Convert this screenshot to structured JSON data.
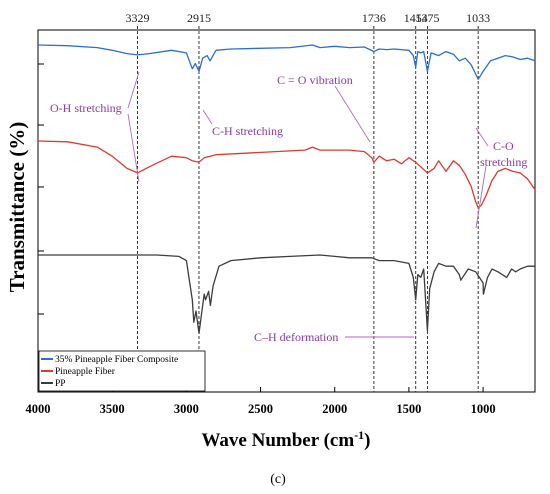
{
  "chart_data": {
    "type": "line",
    "xlabel": "Wave Number (cm",
    "xlabel_sup": "-1",
    "xlabel_close": ")",
    "ylabel": "Transmittance (%)",
    "caption": "(c)",
    "xlim": [
      4000,
      650
    ],
    "x_reversed": true,
    "x_ticks": [
      4000,
      3500,
      3000,
      2500,
      2000,
      1500,
      1000
    ],
    "y_ticks_labeled": false,
    "legend_position": "bottom-left",
    "peak_markers": [
      {
        "label": "3329",
        "x": 3329
      },
      {
        "label": "2915",
        "x": 2915
      },
      {
        "label": "1736",
        "x": 1736
      },
      {
        "label": "1454",
        "x": 1454
      },
      {
        "label": "1375",
        "x": 1375
      },
      {
        "label": "1033",
        "x": 1033
      }
    ],
    "annotations": [
      {
        "text": "O-H stretching"
      },
      {
        "text": "C-H stretching"
      },
      {
        "text": "C = O vibration"
      },
      {
        "text": "C-O"
      },
      {
        "text": "stretching"
      },
      {
        "text": "C–H deformation"
      }
    ],
    "series": [
      {
        "name": "35% Pineapple Fiber Composite",
        "color": "#2b6fd6",
        "x": [
          4000,
          3800,
          3600,
          3500,
          3400,
          3329,
          3250,
          3100,
          3000,
          2960,
          2940,
          2915,
          2890,
          2860,
          2840,
          2800,
          2700,
          2500,
          2300,
          2150,
          2100,
          2000,
          1900,
          1800,
          1736,
          1700,
          1650,
          1600,
          1500,
          1470,
          1454,
          1440,
          1420,
          1400,
          1375,
          1350,
          1300,
          1250,
          1200,
          1160,
          1120,
          1080,
          1050,
          1033,
          1000,
          950,
          900,
          850,
          800,
          750,
          700,
          650
        ],
        "values": [
          100,
          99.5,
          98,
          96,
          93.5,
          92.5,
          93.5,
          96,
          94,
          82,
          86,
          80,
          90,
          92,
          88,
          96,
          97,
          97.5,
          98,
          100,
          98,
          99,
          98,
          98.5,
          95,
          97,
          96.5,
          97,
          96,
          92,
          83,
          95,
          94,
          95,
          80,
          94,
          92,
          95,
          93,
          88,
          90,
          85,
          78,
          74,
          80,
          88,
          90,
          92,
          91,
          89,
          90,
          88
        ]
      },
      {
        "name": "Pineapple Fiber",
        "color": "#e03a2f",
        "x": [
          4000,
          3800,
          3600,
          3500,
          3400,
          3329,
          3250,
          3100,
          3000,
          2960,
          2915,
          2880,
          2800,
          2600,
          2400,
          2200,
          2150,
          2100,
          2000,
          1900,
          1800,
          1750,
          1736,
          1700,
          1650,
          1600,
          1550,
          1500,
          1454,
          1420,
          1375,
          1330,
          1300,
          1250,
          1200,
          1160,
          1120,
          1080,
          1050,
          1033,
          1010,
          980,
          940,
          900,
          850,
          800,
          750,
          700,
          650
        ],
        "values": [
          78,
          77.5,
          74,
          68,
          60,
          57,
          61,
          68,
          67,
          65,
          64,
          67,
          69,
          70,
          71,
          72,
          74,
          72,
          72,
          72,
          71,
          67,
          64,
          68,
          65,
          66,
          63,
          67,
          64,
          61,
          57,
          60,
          65,
          58,
          65,
          62,
          56,
          48,
          38,
          34,
          36,
          42,
          52,
          58,
          60,
          58,
          57,
          53,
          46
        ]
      },
      {
        "name": "PP",
        "color": "#3c3c3c",
        "x": [
          4000,
          3800,
          3600,
          3400,
          3200,
          3050,
          3000,
          2960,
          2950,
          2935,
          2915,
          2900,
          2880,
          2870,
          2850,
          2838,
          2820,
          2780,
          2700,
          2500,
          2300,
          2100,
          2000,
          1900,
          1800,
          1750,
          1700,
          1600,
          1500,
          1470,
          1454,
          1440,
          1420,
          1400,
          1375,
          1360,
          1330,
          1300,
          1250,
          1200,
          1160,
          1150,
          1100,
          1050,
          1000,
          998,
          970,
          940,
          900,
          841,
          808,
          780,
          750,
          700,
          650
        ],
        "values": [
          44,
          44,
          44,
          44,
          44,
          43.5,
          42,
          28,
          20,
          24,
          16,
          22,
          30,
          28,
          31,
          26,
          33,
          40,
          42,
          43,
          43.5,
          44,
          43.5,
          43,
          43,
          43,
          42,
          42,
          41,
          36,
          28,
          37,
          36,
          39,
          17,
          32,
          38,
          41,
          40,
          40,
          37,
          35,
          39,
          38,
          34,
          30,
          36,
          39,
          38,
          36,
          39,
          38,
          39,
          40,
          40
        ]
      }
    ]
  }
}
